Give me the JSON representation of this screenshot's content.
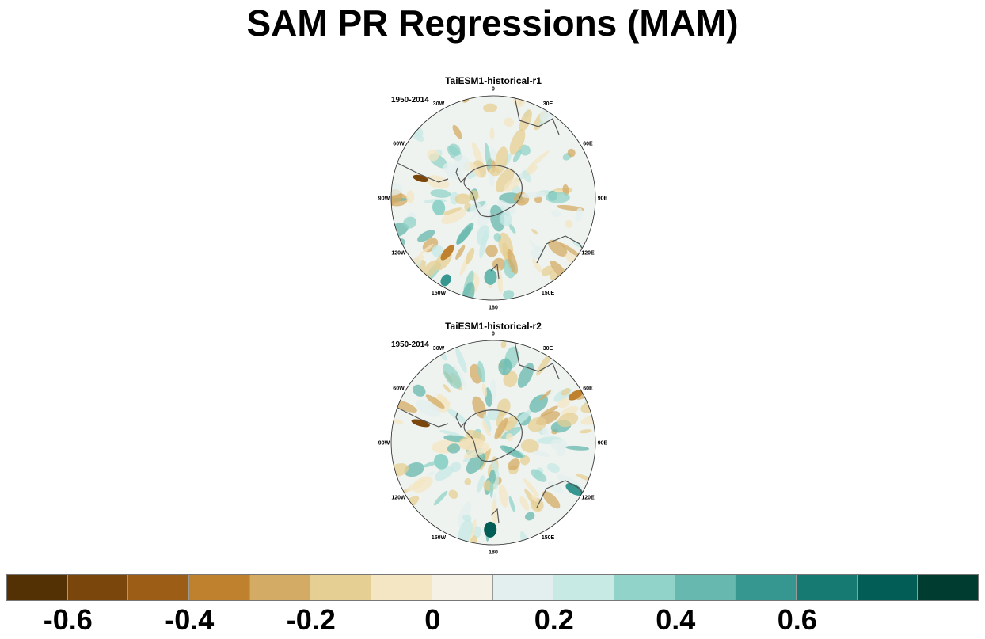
{
  "title": "SAM PR Regressions (MAM)",
  "panels": [
    {
      "title": "TaiESM1-historical-r1",
      "period": "1950-2014",
      "lon_labels": [
        "0",
        "30E",
        "60E",
        "90E",
        "120E",
        "150E",
        "180",
        "150W",
        "120W",
        "90W",
        "60W",
        "30W"
      ]
    },
    {
      "title": "TaiESM1-historical-r2",
      "period": "1950-2014",
      "lon_labels": [
        "0",
        "30E",
        "60E",
        "90E",
        "120E",
        "150E",
        "180",
        "150W",
        "120W",
        "90W",
        "60W",
        "30W"
      ]
    }
  ],
  "colorbar": {
    "colors": [
      "#543005",
      "#7a460b",
      "#9c5d17",
      "#bf812d",
      "#d4ab64",
      "#e6cf93",
      "#f4e6c3",
      "#f5f1e5",
      "#e3efee",
      "#c7eae5",
      "#91d3c8",
      "#67b8ae",
      "#35978f",
      "#167a72",
      "#015d55",
      "#003c30"
    ],
    "tick_labels": [
      "-0.6",
      "-0.4",
      "-0.2",
      "0",
      "0.2",
      "0.4",
      "0.6"
    ]
  }
}
